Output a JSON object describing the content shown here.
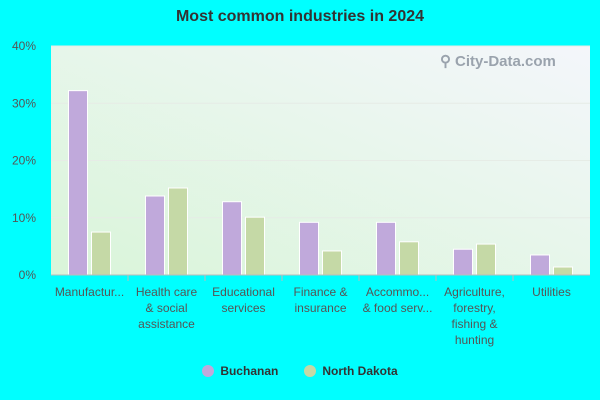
{
  "colors": {
    "series1": "#c0a9db",
    "series2": "#c5d9a6",
    "plot_bg_top": "#f4f6fb",
    "plot_bg_bottom": "#d9f5d9"
  },
  "watermark": "City-Data.com",
  "chart_data": {
    "type": "bar",
    "title": "Most common industries in 2024",
    "xlabel": "",
    "ylabel": "",
    "ylim": [
      0,
      40
    ],
    "yticks": [
      "0%",
      "10%",
      "20%",
      "30%",
      "40%"
    ],
    "categories": [
      [
        "Manufactur..."
      ],
      [
        "Health care",
        "& social",
        "assistance"
      ],
      [
        "Educational",
        "services"
      ],
      [
        "Finance &",
        "insurance"
      ],
      [
        "Accommo...",
        "& food serv..."
      ],
      [
        "Agriculture,",
        "forestry,",
        "fishing &",
        "hunting"
      ],
      [
        "Utilities"
      ]
    ],
    "series": [
      {
        "name": "Buchanan",
        "values": [
          32.2,
          13.8,
          12.8,
          9.2,
          9.2,
          4.5,
          3.5
        ]
      },
      {
        "name": "North Dakota",
        "values": [
          7.5,
          15.2,
          10.1,
          4.2,
          5.8,
          5.4,
          1.4
        ]
      }
    ],
    "legend": "bottom",
    "grid": true
  }
}
